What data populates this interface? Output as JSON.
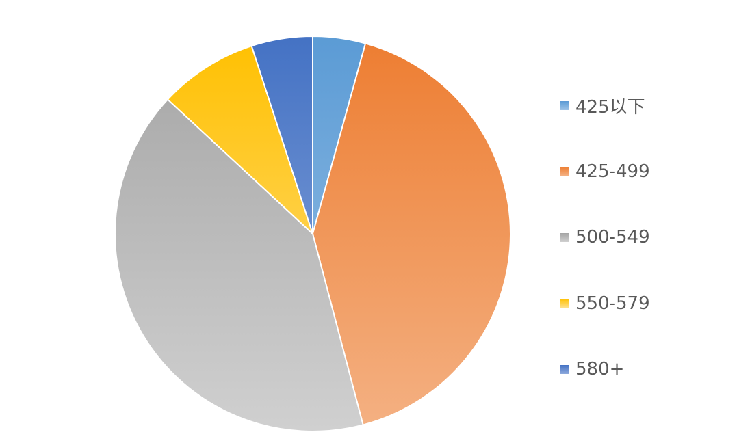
{
  "chart_data": {
    "type": "pie",
    "title": "",
    "start_angle_deg": 0,
    "direction": "clockwise",
    "legend_position": "right",
    "slices": [
      {
        "label": "425以下",
        "value": 4.3,
        "color_top": "#5b9bd5",
        "color_bottom": "#9dc3e6"
      },
      {
        "label": "425-499",
        "value": 41.6,
        "color_top": "#ed7d31",
        "color_bottom": "#f4b183"
      },
      {
        "label": "500-549",
        "value": 41.0,
        "color_top": "#a5a5a5",
        "color_bottom": "#d0d0d0"
      },
      {
        "label": "550-579",
        "value": 8.1,
        "color_top": "#ffc000",
        "color_bottom": "#ffe08a"
      },
      {
        "label": "580+",
        "value": 5.0,
        "color_top": "#4472c4",
        "color_bottom": "#8faadc"
      }
    ]
  }
}
